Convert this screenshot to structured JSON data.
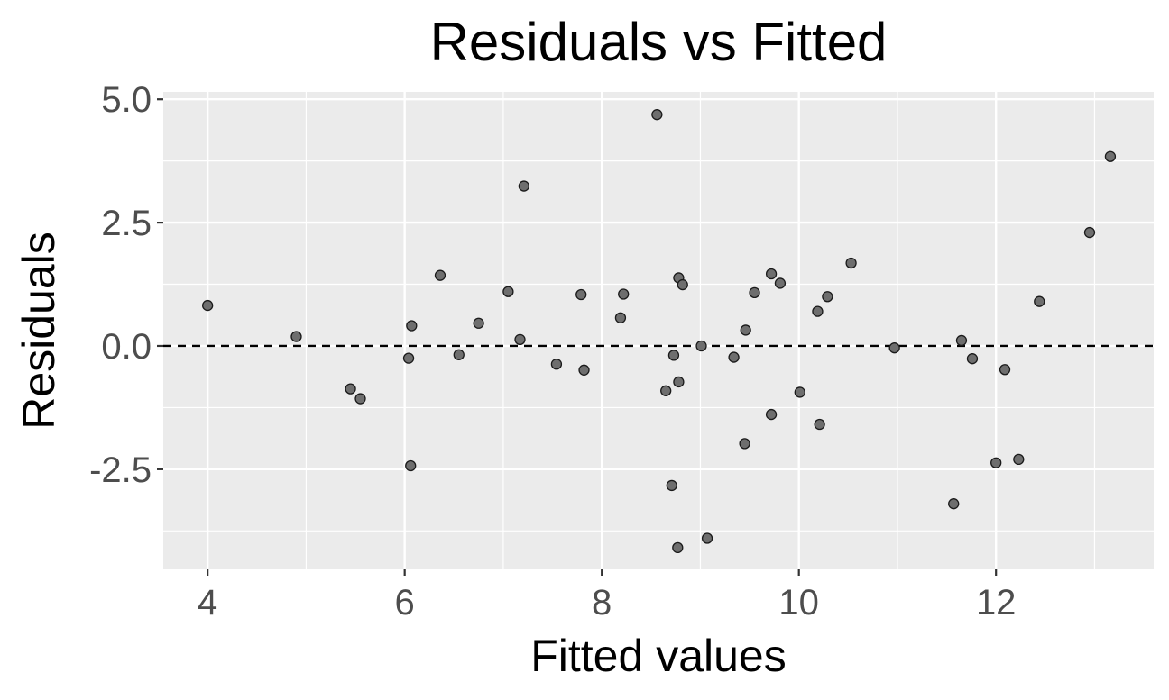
{
  "chart_data": {
    "type": "scatter",
    "title": "Residuals vs Fitted",
    "xlabel": "Fitted values",
    "ylabel": "Residuals",
    "xlim": [
      3.55,
      13.6
    ],
    "ylim": [
      -4.53,
      5.15
    ],
    "x_ticks": [
      4,
      6,
      8,
      10,
      12
    ],
    "x_tick_labels": [
      "4",
      "6",
      "8",
      "10",
      "12"
    ],
    "y_ticks": [
      -2.5,
      0,
      2.5,
      5
    ],
    "y_tick_labels": [
      "-2.5",
      "0.0",
      "2.5",
      "5.0"
    ],
    "grid": true,
    "reference_line": {
      "y": 0,
      "style": "dashed"
    },
    "colors": {
      "panel": "#ebebeb",
      "grid": "#ffffff",
      "point_fill": "#6e6e6e",
      "point_stroke": "#1a1a1a",
      "reference_line": "#000000"
    },
    "points": [
      {
        "x": 4.0,
        "y": 0.82
      },
      {
        "x": 4.9,
        "y": 0.19
      },
      {
        "x": 5.45,
        "y": -0.87
      },
      {
        "x": 5.55,
        "y": -1.07
      },
      {
        "x": 6.04,
        "y": -0.25
      },
      {
        "x": 6.07,
        "y": 0.41
      },
      {
        "x": 6.06,
        "y": -2.43
      },
      {
        "x": 6.36,
        "y": 1.43
      },
      {
        "x": 6.55,
        "y": -0.18
      },
      {
        "x": 6.75,
        "y": 0.46
      },
      {
        "x": 7.05,
        "y": 1.1
      },
      {
        "x": 7.17,
        "y": 0.13
      },
      {
        "x": 7.21,
        "y": 3.24
      },
      {
        "x": 7.54,
        "y": -0.37
      },
      {
        "x": 7.79,
        "y": 1.04
      },
      {
        "x": 7.82,
        "y": -0.49
      },
      {
        "x": 8.19,
        "y": 0.57
      },
      {
        "x": 8.22,
        "y": 1.05
      },
      {
        "x": 8.56,
        "y": 4.69
      },
      {
        "x": 8.65,
        "y": -0.91
      },
      {
        "x": 8.71,
        "y": -2.83
      },
      {
        "x": 8.73,
        "y": -0.19
      },
      {
        "x": 8.77,
        "y": -4.09
      },
      {
        "x": 8.78,
        "y": 1.38
      },
      {
        "x": 8.78,
        "y": -0.73
      },
      {
        "x": 8.82,
        "y": 1.24
      },
      {
        "x": 9.01,
        "y": 0.0
      },
      {
        "x": 9.07,
        "y": -3.9
      },
      {
        "x": 9.34,
        "y": -0.23
      },
      {
        "x": 9.45,
        "y": -1.98
      },
      {
        "x": 9.46,
        "y": 0.32
      },
      {
        "x": 9.55,
        "y": 1.08
      },
      {
        "x": 9.72,
        "y": 1.46
      },
      {
        "x": 9.72,
        "y": -1.39
      },
      {
        "x": 9.81,
        "y": 1.27
      },
      {
        "x": 10.01,
        "y": -0.94
      },
      {
        "x": 10.19,
        "y": 0.7
      },
      {
        "x": 10.21,
        "y": -1.59
      },
      {
        "x": 10.29,
        "y": 1.0
      },
      {
        "x": 10.53,
        "y": 1.68
      },
      {
        "x": 10.97,
        "y": -0.04
      },
      {
        "x": 11.57,
        "y": -3.2
      },
      {
        "x": 11.65,
        "y": 0.11
      },
      {
        "x": 11.76,
        "y": -0.26
      },
      {
        "x": 12.0,
        "y": -2.37
      },
      {
        "x": 12.09,
        "y": -0.48
      },
      {
        "x": 12.23,
        "y": -2.3
      },
      {
        "x": 12.44,
        "y": 0.9
      },
      {
        "x": 12.95,
        "y": 2.3
      },
      {
        "x": 13.16,
        "y": 3.84
      }
    ]
  }
}
